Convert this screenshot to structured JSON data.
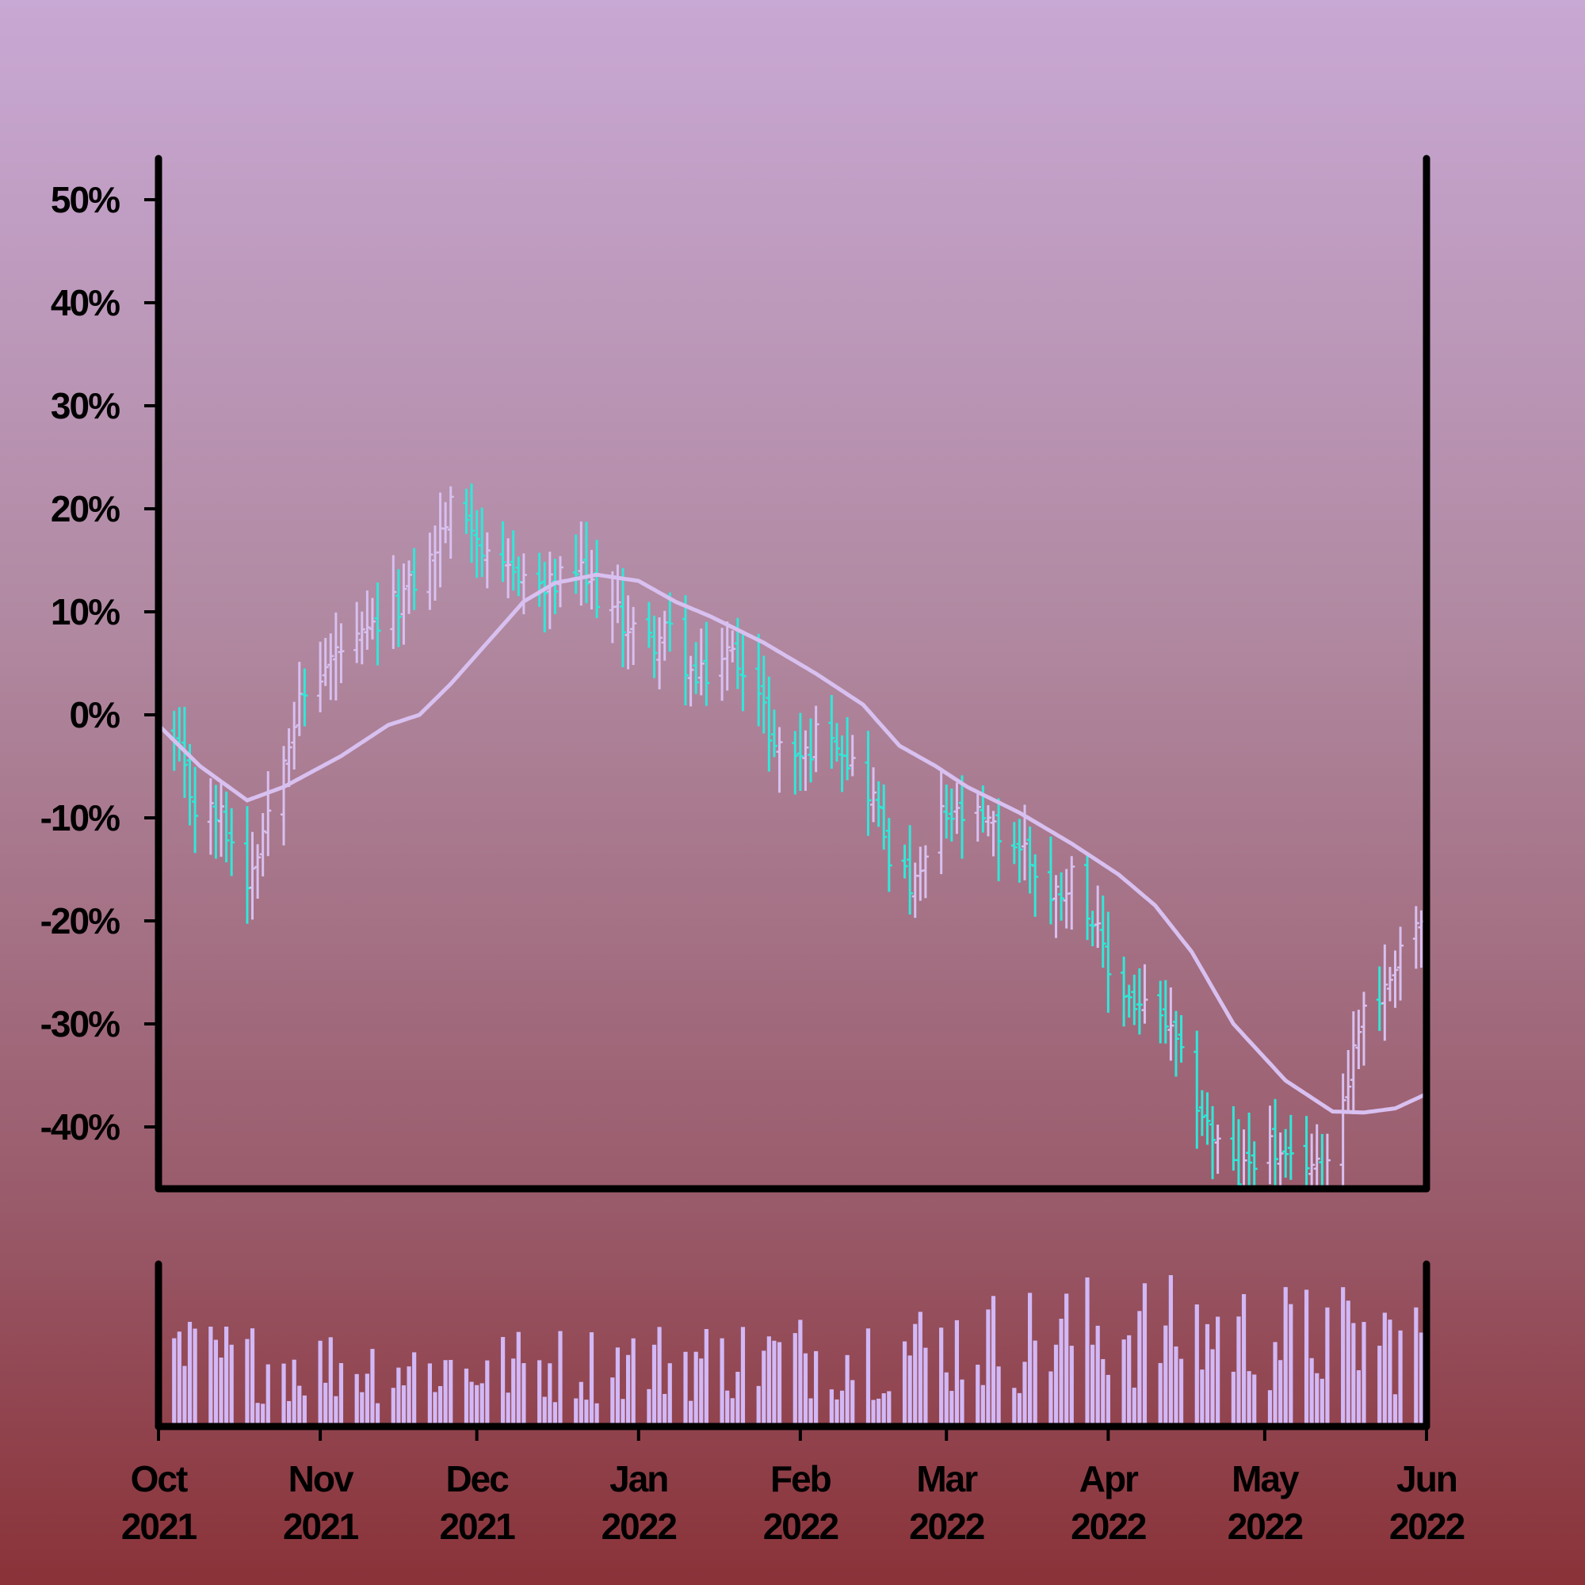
{
  "chart_data": {
    "type": "ohlc",
    "panels": [
      "price-ohlc-with-moving-average",
      "volume-bars"
    ],
    "colors": {
      "up": "#d8c0f0",
      "down": "#30e8d8",
      "moving_average": "#d8c0f0",
      "volume": "#d2b8f6",
      "axes": "#000000"
    },
    "y_axis": {
      "ticks": [
        {
          "value": 50,
          "label": "50%"
        },
        {
          "value": 40,
          "label": "40%"
        },
        {
          "value": 30,
          "label": "30%"
        },
        {
          "value": 20,
          "label": "20%"
        },
        {
          "value": 10,
          "label": "10%"
        },
        {
          "value": 0,
          "label": "0%"
        },
        {
          "value": -10,
          "label": "-10%"
        },
        {
          "value": -20,
          "label": "-20%"
        },
        {
          "value": -30,
          "label": "-30%"
        },
        {
          "value": -40,
          "label": "-40%"
        }
      ],
      "range": [
        -46,
        54
      ]
    },
    "x_axis": {
      "range": [
        "2021-10-01",
        "2022-06-01"
      ],
      "ticks": [
        {
          "date": "2021-10-01",
          "line1": "Oct",
          "line2": "2021"
        },
        {
          "date": "2021-11-01",
          "line1": "Nov",
          "line2": "2021"
        },
        {
          "date": "2021-12-01",
          "line1": "Dec",
          "line2": "2021"
        },
        {
          "date": "2022-01-01",
          "line1": "Jan",
          "line2": "2022"
        },
        {
          "date": "2022-02-01",
          "line1": "Feb",
          "line2": "2022"
        },
        {
          "date": "2022-03-01",
          "line1": "Mar",
          "line2": "2022"
        },
        {
          "date": "2022-04-01",
          "line1": "Apr",
          "line2": "2022"
        },
        {
          "date": "2022-05-01",
          "line1": "May",
          "line2": "2022"
        },
        {
          "date": "2022-06-01",
          "line1": "Jun",
          "line2": "2022"
        }
      ]
    },
    "close_path": [
      {
        "date": "2021-10-01",
        "close": 0
      },
      {
        "date": "2021-10-04",
        "close": -3
      },
      {
        "date": "2021-10-08",
        "close": -9
      },
      {
        "date": "2021-10-13",
        "close": -10
      },
      {
        "date": "2021-10-18",
        "close": -16
      },
      {
        "date": "2021-10-21",
        "close": -11
      },
      {
        "date": "2021-10-25",
        "close": -3
      },
      {
        "date": "2021-10-28",
        "close": 1
      },
      {
        "date": "2021-11-04",
        "close": 6
      },
      {
        "date": "2021-11-09",
        "close": 7
      },
      {
        "date": "2021-11-16",
        "close": 11
      },
      {
        "date": "2021-11-22",
        "close": 15
      },
      {
        "date": "2021-11-26",
        "close": 20
      },
      {
        "date": "2021-11-30",
        "close": 19
      },
      {
        "date": "2021-12-04",
        "close": 13
      },
      {
        "date": "2021-12-09",
        "close": 14
      },
      {
        "date": "2021-12-14",
        "close": 12
      },
      {
        "date": "2021-12-20",
        "close": 14
      },
      {
        "date": "2021-12-27",
        "close": 10
      },
      {
        "date": "2022-01-03",
        "close": 7
      },
      {
        "date": "2022-01-07",
        "close": 8
      },
      {
        "date": "2022-01-12",
        "close": 3
      },
      {
        "date": "2022-01-18",
        "close": 6
      },
      {
        "date": "2022-01-22",
        "close": 5
      },
      {
        "date": "2022-01-27",
        "close": -3
      },
      {
        "date": "2022-02-02",
        "close": -4
      },
      {
        "date": "2022-02-06",
        "close": 0
      },
      {
        "date": "2022-02-10",
        "close": -4
      },
      {
        "date": "2022-02-15",
        "close": -8
      },
      {
        "date": "2022-02-19",
        "close": -15
      },
      {
        "date": "2022-02-23",
        "close": -17
      },
      {
        "date": "2022-02-28",
        "close": -10
      },
      {
        "date": "2022-03-06",
        "close": -10
      },
      {
        "date": "2022-03-12",
        "close": -12
      },
      {
        "date": "2022-03-16",
        "close": -13
      },
      {
        "date": "2022-03-21",
        "close": -18
      },
      {
        "date": "2022-03-26",
        "close": -15
      },
      {
        "date": "2022-04-01",
        "close": -25
      },
      {
        "date": "2022-04-06",
        "close": -28
      },
      {
        "date": "2022-04-12",
        "close": -30
      },
      {
        "date": "2022-04-16",
        "close": -35
      },
      {
        "date": "2022-04-21",
        "close": -41
      },
      {
        "date": "2022-04-26",
        "close": -45
      },
      {
        "date": "2022-05-01",
        "close": -41
      },
      {
        "date": "2022-05-05",
        "close": -44
      },
      {
        "date": "2022-05-09",
        "close": -43
      },
      {
        "date": "2022-05-12",
        "close": -45
      },
      {
        "date": "2022-05-16",
        "close": -37
      },
      {
        "date": "2022-05-20",
        "close": -28
      },
      {
        "date": "2022-05-24",
        "close": -27
      },
      {
        "date": "2022-05-27",
        "close": -22
      },
      {
        "date": "2022-05-31",
        "close": -20
      }
    ],
    "moving_average": [
      {
        "date": "2021-10-01",
        "value": -1
      },
      {
        "date": "2021-10-09",
        "value": -5
      },
      {
        "date": "2021-10-18",
        "value": -8.3
      },
      {
        "date": "2021-10-25",
        "value": -7
      },
      {
        "date": "2021-11-05",
        "value": -4
      },
      {
        "date": "2021-11-14",
        "value": -1
      },
      {
        "date": "2021-11-20",
        "value": 0
      },
      {
        "date": "2021-11-26",
        "value": 3
      },
      {
        "date": "2021-12-03",
        "value": 7
      },
      {
        "date": "2021-12-10",
        "value": 11
      },
      {
        "date": "2021-12-16",
        "value": 12.8
      },
      {
        "date": "2021-12-24",
        "value": 13.6
      },
      {
        "date": "2022-01-01",
        "value": 13
      },
      {
        "date": "2022-01-08",
        "value": 11
      },
      {
        "date": "2022-01-15",
        "value": 9.5
      },
      {
        "date": "2022-01-25",
        "value": 7
      },
      {
        "date": "2022-02-04",
        "value": 4
      },
      {
        "date": "2022-02-13",
        "value": 1
      },
      {
        "date": "2022-02-20",
        "value": -3
      },
      {
        "date": "2022-02-27",
        "value": -5
      },
      {
        "date": "2022-03-05",
        "value": -7
      },
      {
        "date": "2022-03-15",
        "value": -9.5
      },
      {
        "date": "2022-03-25",
        "value": -12.5
      },
      {
        "date": "2022-04-03",
        "value": -15.5
      },
      {
        "date": "2022-04-10",
        "value": -18.5
      },
      {
        "date": "2022-04-17",
        "value": -23
      },
      {
        "date": "2022-04-25",
        "value": -30
      },
      {
        "date": "2022-05-05",
        "value": -35.5
      },
      {
        "date": "2022-05-14",
        "value": -38.5
      },
      {
        "date": "2022-05-20",
        "value": -38.6
      },
      {
        "date": "2022-05-26",
        "value": -38.2
      },
      {
        "date": "2022-06-01",
        "value": -36.8
      }
    ],
    "volume_profile": [
      {
        "date": "2021-10-01",
        "level": 0.45
      },
      {
        "date": "2021-11-01",
        "level": 0.4
      },
      {
        "date": "2021-12-01",
        "level": 0.38
      },
      {
        "date": "2022-01-01",
        "level": 0.42
      },
      {
        "date": "2022-02-01",
        "level": 0.46
      },
      {
        "date": "2022-03-01",
        "level": 0.52
      },
      {
        "date": "2022-04-01",
        "level": 0.62
      },
      {
        "date": "2022-05-01",
        "level": 0.58
      },
      {
        "date": "2022-06-01",
        "level": 0.55
      }
    ]
  }
}
